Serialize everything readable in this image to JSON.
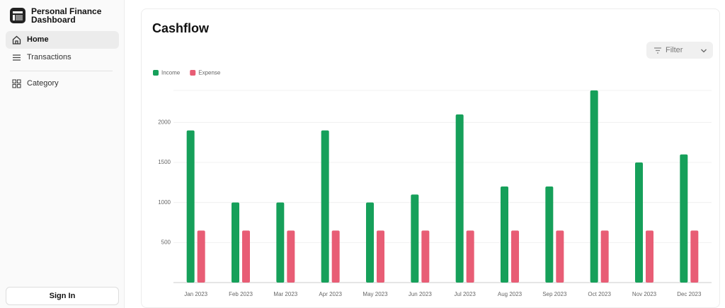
{
  "sidebar": {
    "app_name": "Personal Finance Dashboard",
    "nav": [
      "Home",
      "Transactions",
      "Category"
    ],
    "sign_in": "Sign In"
  },
  "filter": "Filter",
  "chart_data": {
    "type": "bar",
    "title": "Cashflow",
    "categories": [
      "Jan 2023",
      "Feb 2023",
      "Mar 2023",
      "Apr 2023",
      "May 2023",
      "Jun 2023",
      "Jul 2023",
      "Aug 2023",
      "Sep 2023",
      "Oct 2023",
      "Nov 2023",
      "Dec 2023"
    ],
    "series": [
      {
        "name": "Income",
        "color": "#16a05a",
        "values": [
          1900,
          1000,
          1000,
          1900,
          1000,
          1100,
          2100,
          1200,
          1200,
          2400,
          1500,
          1600
        ]
      },
      {
        "name": "Expense",
        "color": "#e85d75",
        "values": [
          650,
          650,
          650,
          650,
          650,
          650,
          650,
          650,
          650,
          650,
          650,
          650
        ]
      }
    ],
    "ylim": [
      0,
      2400
    ],
    "yticks": [
      500,
      1000,
      1500,
      2000
    ],
    "grid": true,
    "legend": "top-left"
  }
}
